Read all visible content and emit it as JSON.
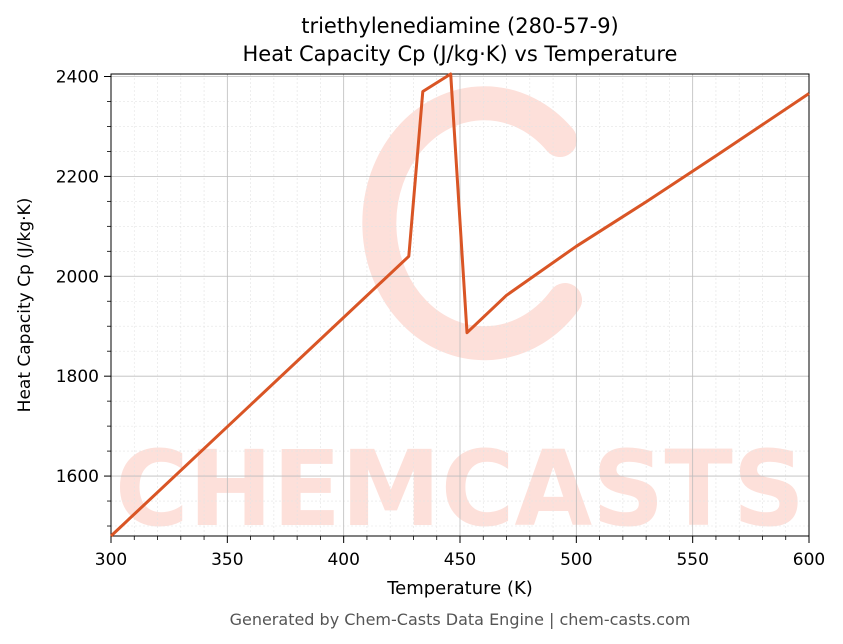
{
  "chart_data": {
    "type": "line",
    "title_line1": "triethylenediamine (280-57-9)",
    "title_line2": "Heat Capacity Cp (J/kg·K) vs Temperature",
    "xlabel": "Temperature (K)",
    "ylabel": "Heat Capacity Cp (J/kg·K)",
    "xlim": [
      300,
      600
    ],
    "ylim": [
      1480,
      2405
    ],
    "x_ticks": [
      300,
      350,
      400,
      450,
      500,
      550,
      600
    ],
    "y_ticks": [
      1600,
      1800,
      2000,
      2200,
      2400
    ],
    "grid": true,
    "line_color": "#d95525",
    "series": [
      {
        "x": [
          300,
          428,
          434,
          446,
          453,
          470,
          500,
          530,
          560,
          600
        ],
        "y": [
          1480,
          2040,
          2370,
          2405,
          1887,
          1962,
          2060,
          2149,
          2241,
          2366
        ]
      }
    ]
  },
  "watermark": {
    "text": "CHEMCASTS",
    "color": "#fde0da"
  },
  "footer": "Generated by Chem-Casts Data Engine | chem-casts.com"
}
